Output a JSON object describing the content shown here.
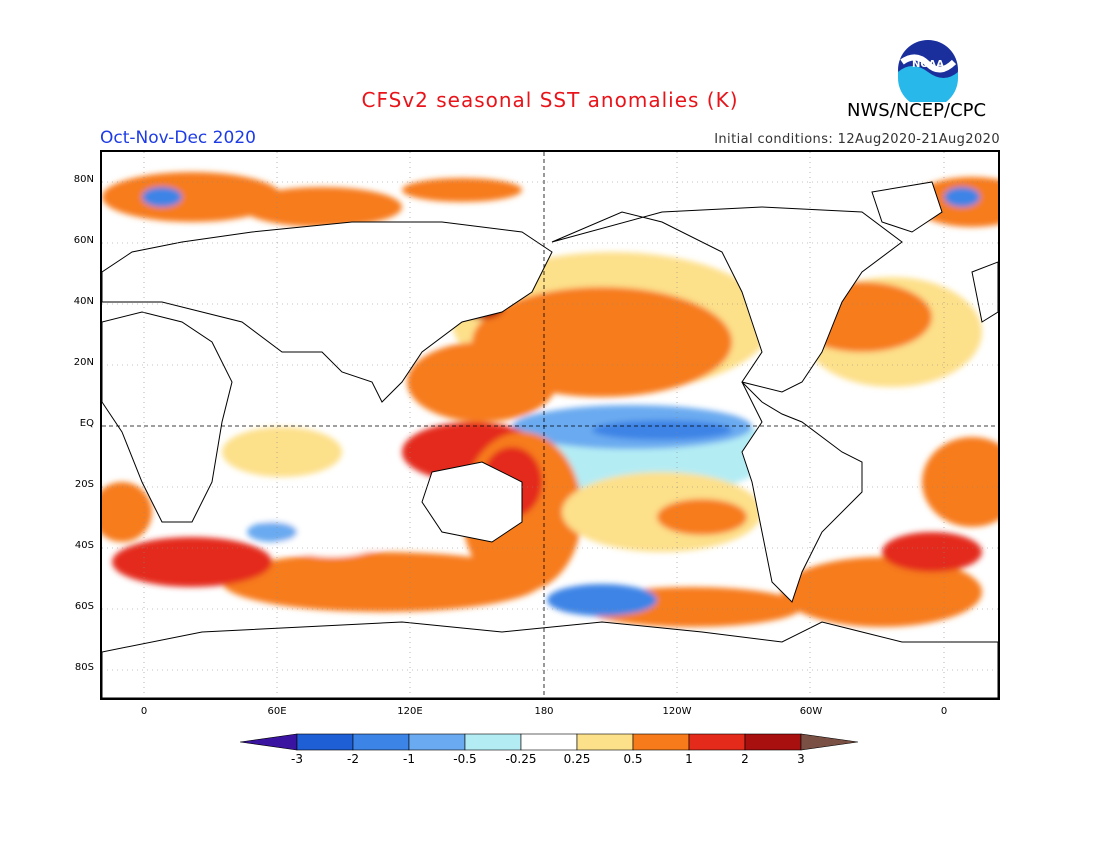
{
  "header": {
    "title": "CFSv2 seasonal SST anomalies (K)",
    "season": "Oct-Nov-Dec 2020",
    "initial_conditions": "Initial conditions: 12Aug2020-21Aug2020",
    "org": "NWS/NCEP/CPC",
    "logo_text": "NOAA"
  },
  "axes": {
    "lat_labels": [
      "80N",
      "60N",
      "40N",
      "20N",
      "EQ",
      "20S",
      "40S",
      "60S",
      "80S"
    ],
    "lon_labels": [
      "0",
      "60E",
      "120E",
      "180",
      "120W",
      "60W",
      "0"
    ]
  },
  "colorbar": {
    "labels": [
      "-3",
      "-2",
      "-1",
      "-0.5",
      "-0.25",
      "0.25",
      "0.5",
      "1",
      "2",
      "3"
    ],
    "colors": [
      "#3a14a0",
      "#1f5fd6",
      "#3c84e6",
      "#6aaaf0",
      "#b4ecf4",
      "#ffffff",
      "#fde08a",
      "#f77b1a",
      "#e42a1a",
      "#a80f0f",
      "#7a5044"
    ]
  },
  "colors": {
    "title": "#e8141a",
    "season": "#1e3ce6",
    "land": "#ffffff",
    "warm": "#f77b1a",
    "cold": "#3c84e6"
  }
}
